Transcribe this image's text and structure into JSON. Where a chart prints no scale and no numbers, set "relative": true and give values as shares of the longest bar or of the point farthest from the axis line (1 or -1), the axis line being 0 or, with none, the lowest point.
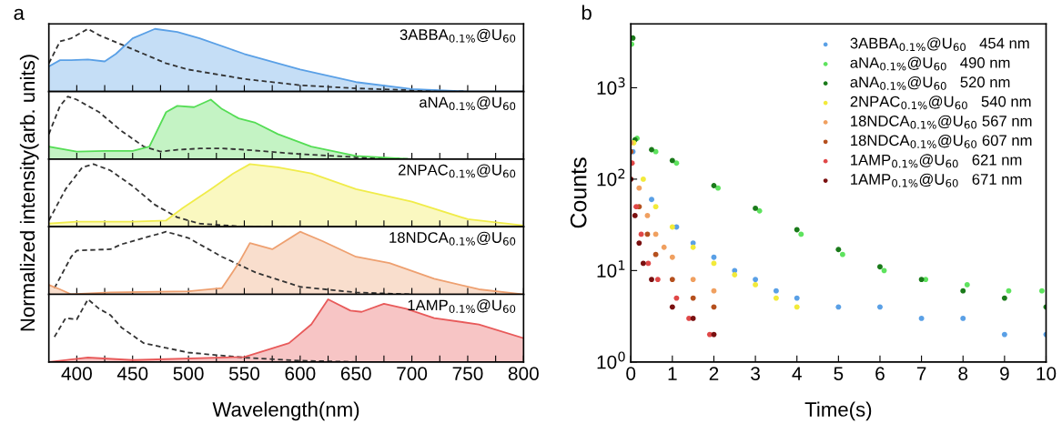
{
  "chart_data": [
    {
      "type": "line",
      "title": "a",
      "relative": true,
      "xlim": [
        375,
        800
      ],
      "xticks": [
        400,
        450,
        500,
        550,
        600,
        650,
        700,
        750,
        800,
        {
          "value": 425,
          "label": null
        },
        {
          "value": 475,
          "label": null
        },
        {
          "value": 525,
          "label": null
        },
        {
          "value": 575,
          "label": null
        },
        {
          "value": 625,
          "label": null
        },
        {
          "value": 675,
          "label": null
        },
        {
          "value": 725,
          "label": null
        },
        {
          "value": 775,
          "label": null
        }
      ],
      "tick_labels": false,
      "annotations": [
        "3ABBA$_{0.1%}$@U$_{60}$"
      ],
      "series": [
        {
          "type": "line",
          "color": "#333333",
          "line_style": "dashed",
          "x": [
            375,
            385,
            395,
            405,
            410,
            420,
            440,
            460,
            480,
            500,
            550,
            600,
            650,
            700,
            750
          ],
          "values": [
            0.45,
            0.8,
            0.85,
            0.95,
            1.0,
            0.9,
            0.75,
            0.6,
            0.45,
            0.35,
            0.2,
            0.1,
            0.05,
            0.02,
            0
          ]
        },
        {
          "type": "area",
          "color": "#5aa0e6",
          "x": [
            375,
            385,
            395,
            410,
            425,
            435,
            450,
            470,
            490,
            510,
            550,
            600,
            650,
            700,
            750,
            800
          ],
          "values": [
            0.4,
            0.5,
            0.5,
            0.51,
            0.48,
            0.6,
            0.85,
            1.0,
            0.95,
            0.85,
            0.6,
            0.35,
            0.15,
            0.04,
            0,
            0
          ]
        }
      ]
    },
    {
      "type": "line",
      "relative": true,
      "xlim": [
        375,
        800
      ],
      "xticks": [
        400,
        450,
        500,
        550,
        600,
        650,
        700,
        750,
        800,
        {
          "value": 425,
          "label": null
        },
        {
          "value": 475,
          "label": null
        },
        {
          "value": 525,
          "label": null
        },
        {
          "value": 575,
          "label": null
        },
        {
          "value": 625,
          "label": null
        },
        {
          "value": 675,
          "label": null
        },
        {
          "value": 725,
          "label": null
        },
        {
          "value": 775,
          "label": null
        }
      ],
      "tick_labels": false,
      "annotations": [
        "aNA$_{0.1%}$@U$_{60}$"
      ],
      "series": [
        {
          "type": "line",
          "color": "#333333",
          "line_style": "dashed",
          "x": [
            375,
            385,
            392,
            400,
            420,
            440,
            460,
            475,
            490,
            510,
            530,
            550,
            600,
            650,
            700
          ],
          "values": [
            0.4,
            0.85,
            1.0,
            0.95,
            0.75,
            0.45,
            0.2,
            0.12,
            0.15,
            0.17,
            0.17,
            0.15,
            0.08,
            0.03,
            0
          ]
        },
        {
          "type": "area",
          "color": "#55dd55",
          "x": [
            375,
            400,
            425,
            450,
            465,
            480,
            490,
            505,
            520,
            530,
            545,
            560,
            580,
            610,
            650,
            700,
            800
          ],
          "values": [
            0.2,
            0.12,
            0.13,
            0.13,
            0.2,
            0.75,
            0.85,
            0.83,
            0.95,
            0.8,
            0.65,
            0.58,
            0.4,
            0.2,
            0.05,
            0,
            0
          ]
        }
      ]
    },
    {
      "type": "line",
      "relative": true,
      "xlim": [
        375,
        800
      ],
      "xticks": [
        400,
        450,
        500,
        550,
        600,
        650,
        700,
        750,
        800,
        {
          "value": 425,
          "label": null
        },
        {
          "value": 475,
          "label": null
        },
        {
          "value": 525,
          "label": null
        },
        {
          "value": 575,
          "label": null
        },
        {
          "value": 625,
          "label": null
        },
        {
          "value": 675,
          "label": null
        },
        {
          "value": 725,
          "label": null
        },
        {
          "value": 775,
          "label": null
        }
      ],
      "tick_labels": false,
      "ylabel": "Normalized intensity(arb. units)",
      "annotations": [
        "2NPAC$_{0.1%}$@U$_{60}$"
      ],
      "series": [
        {
          "type": "line",
          "color": "#333333",
          "line_style": "dashed",
          "x": [
            375,
            390,
            405,
            415,
            430,
            450,
            470,
            490,
            510,
            550,
            600
          ],
          "values": [
            0.1,
            0.6,
            0.95,
            1.0,
            0.9,
            0.65,
            0.35,
            0.15,
            0.05,
            0,
            0
          ]
        },
        {
          "type": "area",
          "color": "#f0ec4a",
          "x": [
            375,
            400,
            450,
            480,
            495,
            520,
            540,
            555,
            580,
            610,
            650,
            700,
            750,
            800
          ],
          "values": [
            0.05,
            0.08,
            0.08,
            0.1,
            0.3,
            0.6,
            0.85,
            1.0,
            0.95,
            0.85,
            0.6,
            0.4,
            0.12,
            0.02
          ]
        }
      ]
    },
    {
      "type": "line",
      "relative": true,
      "xlim": [
        375,
        800
      ],
      "xticks": [
        400,
        450,
        500,
        550,
        600,
        650,
        700,
        750,
        800,
        {
          "value": 425,
          "label": null
        },
        {
          "value": 475,
          "label": null
        },
        {
          "value": 525,
          "label": null
        },
        {
          "value": 575,
          "label": null
        },
        {
          "value": 625,
          "label": null
        },
        {
          "value": 675,
          "label": null
        },
        {
          "value": 725,
          "label": null
        },
        {
          "value": 775,
          "label": null
        }
      ],
      "tick_labels": false,
      "annotations": [
        "18NDCA$_{0.1%}$@U$_{60}$"
      ],
      "series": [
        {
          "type": "line",
          "color": "#333333",
          "line_style": "dashed",
          "x": [
            380,
            395,
            400,
            430,
            440,
            460,
            480,
            500,
            530,
            560,
            600,
            650,
            700
          ],
          "values": [
            0.1,
            0.6,
            0.7,
            0.72,
            0.8,
            0.9,
            1.0,
            0.9,
            0.6,
            0.35,
            0.12,
            0.03,
            0
          ]
        },
        {
          "type": "area",
          "color": "#eea070",
          "x": [
            375,
            385,
            395,
            430,
            500,
            530,
            545,
            555,
            575,
            600,
            620,
            650,
            680,
            720,
            760,
            800
          ],
          "values": [
            0.15,
            0.08,
            0,
            0.03,
            0.05,
            0.1,
            0.5,
            0.82,
            0.72,
            1.0,
            0.85,
            0.6,
            0.5,
            0.25,
            0.08,
            0
          ]
        }
      ]
    },
    {
      "type": "line",
      "relative": true,
      "xlim": [
        375,
        800
      ],
      "xticks": [
        400,
        450,
        500,
        550,
        600,
        650,
        700,
        750,
        800,
        {
          "value": 425,
          "label": null
        },
        {
          "value": 475,
          "label": null
        },
        {
          "value": 525,
          "label": null
        },
        {
          "value": 575,
          "label": null
        },
        {
          "value": 625,
          "label": null
        },
        {
          "value": 675,
          "label": null
        },
        {
          "value": 725,
          "label": null
        },
        {
          "value": 775,
          "label": null
        }
      ],
      "tick_labels": "x",
      "xlabel": "Wavelength(nm)",
      "annotations": [
        "1AMP$_{0.1%}$@U$_{60}$"
      ],
      "series": [
        {
          "type": "line",
          "color": "#333333",
          "line_style": "dashed",
          "x": [
            380,
            390,
            400,
            410,
            420,
            430,
            440,
            460,
            500,
            550,
            600,
            650
          ],
          "values": [
            0.4,
            0.7,
            0.68,
            1.0,
            0.85,
            0.75,
            0.55,
            0.3,
            0.15,
            0.07,
            0.02,
            0
          ]
        },
        {
          "type": "area",
          "color": "#e85a5a",
          "x": [
            375,
            400,
            410,
            450,
            550,
            590,
            610,
            625,
            645,
            655,
            675,
            695,
            720,
            760,
            800
          ],
          "values": [
            0,
            0.05,
            0.07,
            0.03,
            0.08,
            0.3,
            0.6,
            1.0,
            0.82,
            0.8,
            0.93,
            0.85,
            0.7,
            0.6,
            0.38
          ]
        }
      ]
    },
    {
      "type": "scatter",
      "title": "b",
      "xlabel": "Time(s)",
      "ylabel": "Counts",
      "log": "y",
      "xlim": [
        0,
        10
      ],
      "xticks": [
        0,
        1,
        2,
        3,
        4,
        5,
        6,
        7,
        8,
        9,
        10
      ],
      "ylim": [
        1,
        5000
      ],
      "yticks": [
        {
          "value": 1,
          "label": "10$^{0}$"
        },
        {
          "value": 10,
          "label": "10$^{1}$"
        },
        {
          "value": 100,
          "label": "10$^{2}$"
        },
        {
          "value": 1000,
          "label": "10$^{3}$"
        }
      ],
      "legend": "top right",
      "marker": "circle",
      "series": [
        {
          "name": "3ABBA$_{0.1%}$@U$_{60}$   454 nm",
          "color": "#5aa0e6",
          "x": [
            0.05,
            0.5,
            1.1,
            1.5,
            2,
            2.5,
            3,
            3.5,
            4,
            5,
            6,
            7,
            8,
            9,
            10
          ],
          "values": [
            200,
            60,
            30,
            20,
            14,
            10,
            8,
            6,
            5,
            4,
            4,
            3,
            3,
            2,
            2
          ]
        },
        {
          "name": "aNA$_{0.1%}$@U$_{60}$   490 nm",
          "color": "#5ee35e",
          "x": [
            0.02,
            0.15,
            0.6,
            1.1,
            2.1,
            3.1,
            4.1,
            5.1,
            6.1,
            7.1,
            8.1,
            9.1,
            9.9
          ],
          "values": [
            3000,
            280,
            200,
            150,
            80,
            45,
            25,
            15,
            10,
            8,
            7,
            6,
            6
          ]
        },
        {
          "name": "aNA$_{0.1%}$@U$_{60}$   520 nm",
          "color": "#1a7a1a",
          "x": [
            0.05,
            0.1,
            0.5,
            1,
            2,
            3,
            4,
            5,
            6,
            7,
            8,
            9,
            10
          ],
          "values": [
            3500,
            270,
            210,
            160,
            85,
            48,
            28,
            17,
            11,
            8,
            6,
            5,
            4
          ]
        },
        {
          "name": "2NPAC$_{0.1%}$@U$_{60}$   540 nm",
          "color": "#f2ea3a",
          "x": [
            0.07,
            0.3,
            0.6,
            1,
            1.5,
            2,
            2.5,
            3,
            3.5,
            4
          ],
          "values": [
            250,
            100,
            50,
            30,
            18,
            12,
            9,
            7,
            5,
            4
          ]
        },
        {
          "name": "18NDCA$_{0.1%}$@U$_{60}$ 567 nm",
          "color": "#f0a060",
          "x": [
            0,
            0.2,
            0.4,
            0.6,
            0.8,
            1,
            1.5,
            2
          ],
          "values": [
            250,
            80,
            40,
            25,
            18,
            14,
            8,
            6
          ]
        },
        {
          "name": "18NDCA$_{0.1%}$@U$_{60}$ 607 nm",
          "color": "#b5501e",
          "x": [
            0,
            0.2,
            0.4,
            0.6,
            1,
            1.5,
            2
          ],
          "values": [
            200,
            50,
            25,
            15,
            8,
            5,
            4
          ]
        },
        {
          "name": "1AMP$_{0.1%}$@U$_{60}$   621 nm",
          "color": "#e04848",
          "x": [
            0.03,
            0.13,
            0.25,
            0.42,
            0.65,
            1.1,
            1.4,
            1.9
          ],
          "values": [
            150,
            50,
            25,
            12,
            8,
            5,
            3,
            2
          ]
        },
        {
          "name": "1AMP$_{0.1%}$@U$_{60}$   671 nm",
          "color": "#7a1010",
          "x": [
            0,
            0.1,
            0.2,
            0.3,
            0.5,
            1,
            1.5,
            2
          ],
          "values": [
            100,
            40,
            20,
            12,
            8,
            4,
            3,
            2
          ]
        }
      ]
    }
  ]
}
